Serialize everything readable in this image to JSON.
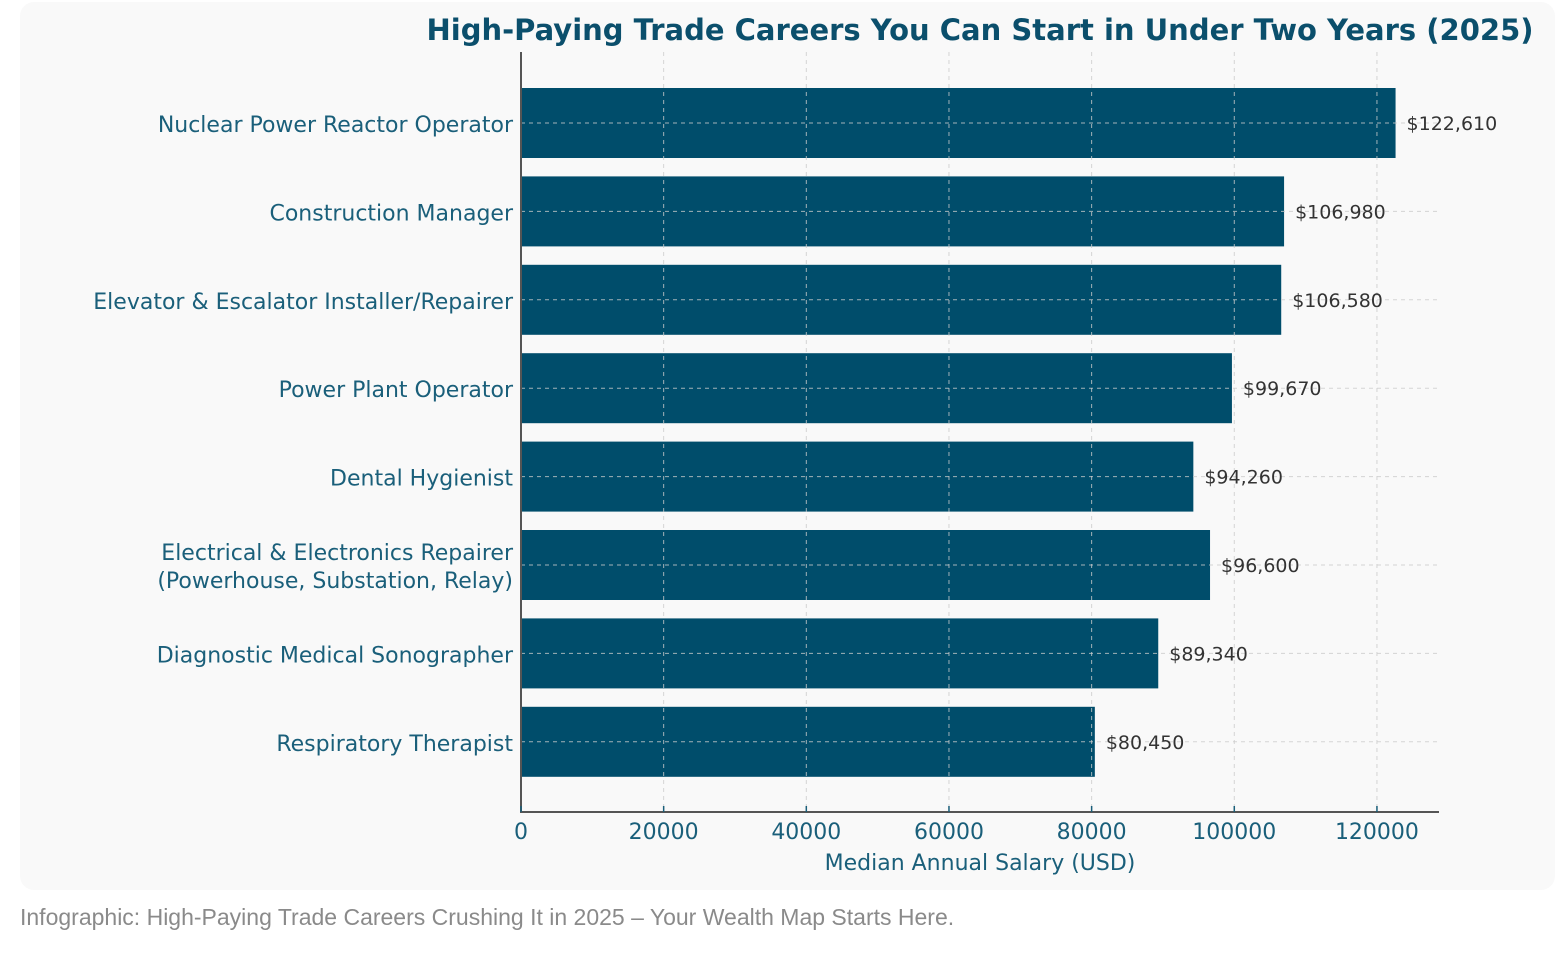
{
  "chart_data": {
    "type": "bar",
    "orientation": "horizontal",
    "title": "High-Paying Trade Careers You Can Start in Under Two Years (2025)",
    "xlabel": "Median Annual Salary (USD)",
    "ylabel": "",
    "xlim": [
      0,
      128700
    ],
    "xticks": [
      0,
      20000,
      40000,
      60000,
      80000,
      100000,
      120000
    ],
    "xtick_labels": [
      "0",
      "20000",
      "40000",
      "60000",
      "80000",
      "100000",
      "120000"
    ],
    "grid": true,
    "categories": [
      [
        "Nuclear Power Reactor Operator"
      ],
      [
        "Construction Manager"
      ],
      [
        "Elevator & Escalator Installer/Repairer"
      ],
      [
        "Power Plant Operator"
      ],
      [
        "Dental Hygienist"
      ],
      [
        "Electrical & Electronics Repairer",
        "(Powerhouse, Substation, Relay)"
      ],
      [
        "Diagnostic Medical Sonographer"
      ],
      [
        "Respiratory Therapist"
      ]
    ],
    "values": [
      122610,
      106980,
      106580,
      99670,
      94260,
      96600,
      89340,
      80450
    ],
    "data_labels": [
      "$122,610",
      "$106,980",
      "$106,580",
      "$99,670",
      "$94,260",
      "$96,600",
      "$89,340",
      "$80,450"
    ],
    "colors": {
      "bar": "#004d6b",
      "title": "#0b4f6c",
      "label": "#1a5f7a",
      "value_label": "#333333"
    }
  },
  "caption": "Infographic: High-Paying Trade Careers Crushing It in 2025 – Your Wealth Map Starts Here."
}
